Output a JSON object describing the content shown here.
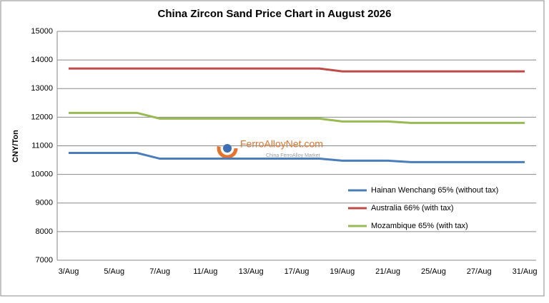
{
  "chart_data": {
    "type": "line",
    "title": "China Zircon Sand Price Chart in August 2026",
    "y_label": "CNY/Ton",
    "categories": [
      "3/Aug",
      null,
      "5/Aug",
      null,
      "7/Aug",
      null,
      "11/Aug",
      null,
      "13/Aug",
      null,
      "17/Aug",
      null,
      "19/Aug",
      null,
      "21/Aug",
      null,
      "25/Aug",
      null,
      "27/Aug",
      null,
      "31/Aug"
    ],
    "series": [
      {
        "name": "Hainan Wenchang 65% (without tax)",
        "color": "#4a7ebb",
        "values": [
          10750,
          10750,
          10750,
          10750,
          10550,
          10550,
          10550,
          10550,
          10550,
          10550,
          10550,
          10550,
          10480,
          10480,
          10480,
          10430,
          10430,
          10430,
          10430,
          10430,
          10430
        ]
      },
      {
        "name": "Australia 66% (with tax)",
        "color": "#be4b48",
        "values": [
          13700,
          13700,
          13700,
          13700,
          13700,
          13700,
          13700,
          13700,
          13700,
          13700,
          13700,
          13700,
          13600,
          13600,
          13600,
          13600,
          13600,
          13600,
          13600,
          13600,
          13600
        ]
      },
      {
        "name": "Mozambique 65% (with tax)",
        "color": "#98b954",
        "values": [
          12150,
          12150,
          12150,
          12150,
          11950,
          11950,
          11950,
          11950,
          11950,
          11950,
          11950,
          11950,
          11850,
          11850,
          11850,
          11800,
          11800,
          11800,
          11800,
          11800,
          11800
        ]
      }
    ],
    "ylim": [
      7000,
      15000
    ],
    "yticks": [
      7000,
      8000,
      9000,
      10000,
      11000,
      12000,
      13000,
      14000,
      15000
    ],
    "grid": true,
    "legend": "lower-right",
    "watermark": "FerroAlloyNet.com",
    "watermark_sub": "China FerroAlloy Market"
  }
}
